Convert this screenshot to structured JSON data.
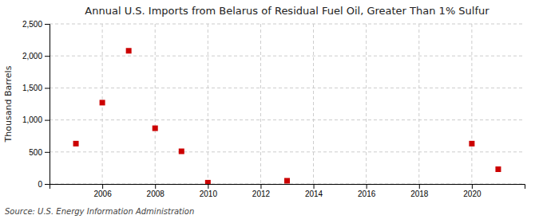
{
  "chart_data": {
    "type": "scatter",
    "title": "Annual U.S. Imports from Belarus of Residual Fuel Oil, Greater Than 1% Sulfur",
    "ylabel": "Thousand Barrels",
    "annotations": [
      "Source: U.S. Energy Information Administration"
    ],
    "x": [
      2005,
      2006,
      2007,
      2008,
      2009,
      2010,
      2013,
      2020,
      2021
    ],
    "values": [
      630,
      1270,
      2080,
      870,
      510,
      20,
      50,
      630,
      230
    ],
    "color": "#cc0000",
    "marker": "square",
    "xlim": [
      2004,
      2022
    ],
    "ylim": [
      0,
      2500
    ],
    "xticks": [
      2006,
      2008,
      2010,
      2012,
      2014,
      2016,
      2018,
      2020
    ],
    "yticks": [
      0,
      500,
      {
        "value": 1000,
        "label": "1,000"
      },
      {
        "value": 1500,
        "label": "1,500"
      },
      {
        "value": 2000,
        "label": "2,000"
      },
      {
        "value": 2500,
        "label": "2,500"
      }
    ],
    "grid": true
  }
}
